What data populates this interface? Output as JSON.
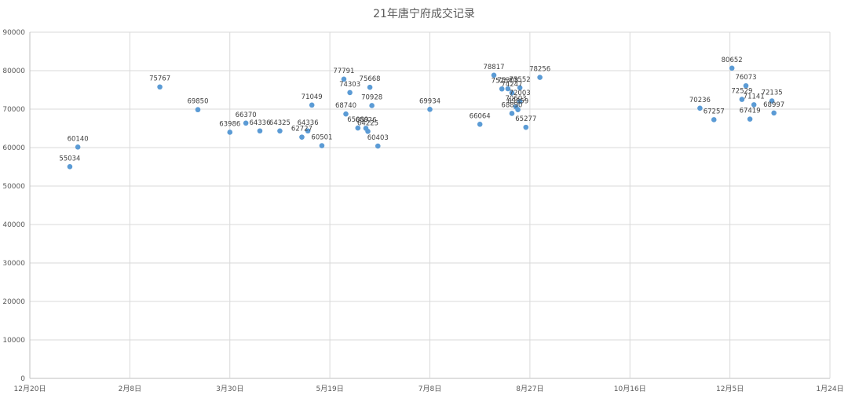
{
  "chart_data": {
    "type": "scatter",
    "title": "21年唐宁府成交记录",
    "xlabel": "",
    "ylabel": "",
    "x_axis": {
      "type": "date",
      "min": "2020-12-20",
      "max": "2022-01-24",
      "tick_dates": [
        "2020-12-20",
        "2021-02-08",
        "2021-03-30",
        "2021-05-19",
        "2021-07-08",
        "2021-08-27",
        "2021-10-16",
        "2021-12-05",
        "2022-01-24"
      ],
      "tick_labels": [
        "12月20日",
        "2月8日",
        "3月30日",
        "5月19日",
        "7月8日",
        "8月27日",
        "10月16日",
        "12月5日",
        "1月24日"
      ]
    },
    "y_axis": {
      "min": 0,
      "max": 90000,
      "ticks": [
        0,
        10000,
        20000,
        30000,
        40000,
        50000,
        60000,
        70000,
        80000,
        90000
      ],
      "tick_labels": [
        "0",
        "10000",
        "20000",
        "30000",
        "40000",
        "50000",
        "60000",
        "70000",
        "80000",
        "90000"
      ]
    },
    "grid": true,
    "legend": "none",
    "marker_color": "#5b9bd5",
    "points": [
      {
        "date": "2021-01-09",
        "value": 55034,
        "label": "55034"
      },
      {
        "date": "2021-01-13",
        "value": 60140,
        "label": "60140"
      },
      {
        "date": "2021-02-23",
        "value": 75767,
        "label": "75767"
      },
      {
        "date": "2021-03-14",
        "value": 69850,
        "label": "69850"
      },
      {
        "date": "2021-03-30",
        "value": 63986,
        "label": "63986"
      },
      {
        "date": "2021-04-07",
        "value": 66370,
        "label": "66370"
      },
      {
        "date": "2021-04-14",
        "value": 64336,
        "label": "64336"
      },
      {
        "date": "2021-04-24",
        "value": 64325,
        "label": "64325"
      },
      {
        "date": "2021-05-05",
        "value": 62727,
        "label": "62727"
      },
      {
        "date": "2021-05-08",
        "value": 64336,
        "label": "64336"
      },
      {
        "date": "2021-05-10",
        "value": 71049,
        "label": "71049"
      },
      {
        "date": "2021-05-15",
        "value": 60501,
        "label": "60501"
      },
      {
        "date": "2021-05-26",
        "value": 77791,
        "label": "77791"
      },
      {
        "date": "2021-05-27",
        "value": 68740,
        "label": "68740"
      },
      {
        "date": "2021-05-29",
        "value": 74303,
        "label": "74303"
      },
      {
        "date": "2021-06-02",
        "value": 65089,
        "label": "65089"
      },
      {
        "date": "2021-06-06",
        "value": 65026,
        "label": "65026"
      },
      {
        "date": "2021-06-07",
        "value": 64225,
        "label": "64225"
      },
      {
        "date": "2021-06-08",
        "value": 75668,
        "label": "75668"
      },
      {
        "date": "2021-06-09",
        "value": 70928,
        "label": "70928"
      },
      {
        "date": "2021-06-12",
        "value": 60403,
        "label": "60403"
      },
      {
        "date": "2021-07-08",
        "value": 69934,
        "label": "69934"
      },
      {
        "date": "2021-08-02",
        "value": 66064,
        "label": "66064"
      },
      {
        "date": "2021-08-09",
        "value": 78817,
        "label": "78817"
      },
      {
        "date": "2021-08-13",
        "value": 75254,
        "label": "75254"
      },
      {
        "date": "2021-08-16",
        "value": 75308,
        "label": "75308"
      },
      {
        "date": "2021-08-18",
        "value": 74247,
        "label": "74247"
      },
      {
        "date": "2021-08-18",
        "value": 68890,
        "label": "68890"
      },
      {
        "date": "2021-08-20",
        "value": 70603,
        "label": "70603"
      },
      {
        "date": "2021-08-21",
        "value": 69859,
        "label": "69859"
      },
      {
        "date": "2021-08-22",
        "value": 75552,
        "label": "75552"
      },
      {
        "date": "2021-08-22",
        "value": 72003,
        "label": "72003"
      },
      {
        "date": "2021-08-25",
        "value": 65277,
        "label": "65277"
      },
      {
        "date": "2021-09-01",
        "value": 78256,
        "label": "78256"
      },
      {
        "date": "2021-11-20",
        "value": 70236,
        "label": "70236"
      },
      {
        "date": "2021-11-27",
        "value": 67257,
        "label": "67257"
      },
      {
        "date": "2021-12-06",
        "value": 80652,
        "label": "80652"
      },
      {
        "date": "2021-12-11",
        "value": 72529,
        "label": "72529"
      },
      {
        "date": "2021-12-13",
        "value": 76073,
        "label": "76073"
      },
      {
        "date": "2021-12-15",
        "value": 67419,
        "label": "67419"
      },
      {
        "date": "2021-12-17",
        "value": 71141,
        "label": "71141"
      },
      {
        "date": "2021-12-26",
        "value": 72135,
        "label": "72135"
      },
      {
        "date": "2021-12-27",
        "value": 68997,
        "label": "68997"
      }
    ]
  }
}
